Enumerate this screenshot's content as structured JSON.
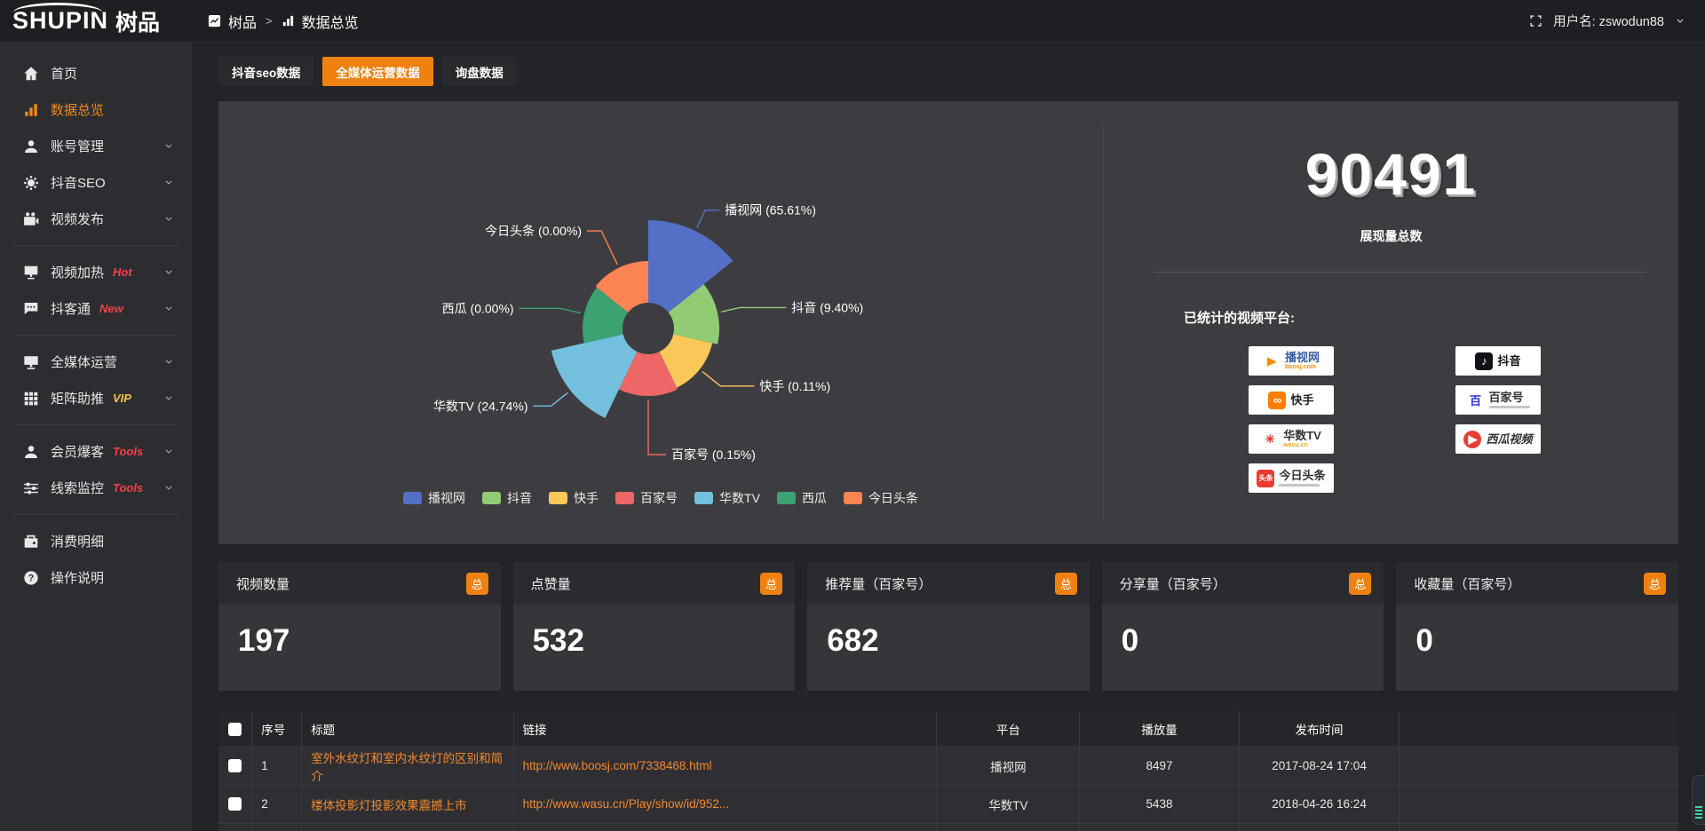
{
  "colors": {
    "accent_orange": "#EE8110",
    "link_orange": "#F0892F",
    "tag_red": "#F5404A",
    "tag_yellow": "#F6C344",
    "panel_bg": "#3D3D41",
    "sidebar_bg": "#2D2D31",
    "header_bg": "#1F1F23"
  },
  "header": {
    "logo_en": "SHUPIN",
    "logo_cn": "树品",
    "breadcrumb": {
      "root": "树品",
      "separator": ">",
      "current": "数据总览"
    },
    "username": "用户名: zswodun88"
  },
  "sidebar": {
    "groups": [
      {
        "items": [
          {
            "key": "home",
            "icon": "home",
            "label": "首页",
            "tag": "",
            "chevron": false,
            "active": false
          },
          {
            "key": "data-overview",
            "icon": "chart",
            "label": "数据总览",
            "tag": "",
            "chevron": false,
            "active": true
          },
          {
            "key": "account-management",
            "icon": "user",
            "label": "账号管理",
            "tag": "",
            "chevron": true,
            "active": false
          },
          {
            "key": "douyin-seo",
            "icon": "gear",
            "label": "抖音SEO",
            "tag": "",
            "chevron": true,
            "active": false
          },
          {
            "key": "video-publish",
            "icon": "video",
            "label": "视频发布",
            "tag": "",
            "chevron": true,
            "active": false
          }
        ]
      },
      {
        "items": [
          {
            "key": "video-heat",
            "icon": "board",
            "label": "视频加热",
            "tag": "Hot",
            "tag_color": "red",
            "chevron": true,
            "active": false
          },
          {
            "key": "douketong",
            "icon": "chat",
            "label": "抖客通",
            "tag": "New",
            "tag_color": "red",
            "chevron": true,
            "active": false
          }
        ]
      },
      {
        "items": [
          {
            "key": "omnimedia-operation",
            "icon": "monitor",
            "label": "全媒体运营",
            "tag": "",
            "chevron": true,
            "active": false
          },
          {
            "key": "matrix-boost",
            "icon": "grid",
            "label": "矩阵助推",
            "tag": "VIP",
            "tag_color": "yellow",
            "chevron": true,
            "active": false
          }
        ]
      },
      {
        "items": [
          {
            "key": "member-baoke",
            "icon": "user",
            "label": "会员爆客",
            "tag": "Tools",
            "tag_color": "red",
            "chevron": true,
            "active": false
          },
          {
            "key": "lead-monitor",
            "icon": "sliders",
            "label": "线索监控",
            "tag": "Tools",
            "tag_color": "red",
            "chevron": true,
            "active": false
          }
        ]
      },
      {
        "items": [
          {
            "key": "consumption-detail",
            "icon": "wallet",
            "label": "消费明细",
            "tag": "",
            "chevron": false,
            "active": false
          },
          {
            "key": "operation-guide",
            "icon": "question",
            "label": "操作说明",
            "tag": "",
            "chevron": false,
            "active": false
          }
        ]
      }
    ]
  },
  "tabs": [
    {
      "key": "douyin-seo-data",
      "label": "抖音seo数据",
      "active": false
    },
    {
      "key": "omnimedia-data",
      "label": "全媒体运营数据",
      "active": true
    },
    {
      "key": "inquiry-data",
      "label": "询盘数据",
      "active": false
    }
  ],
  "chart_data": {
    "type": "pie",
    "style": "nightingale-rose",
    "categories": [
      "播视网",
      "抖音",
      "快手",
      "百家号",
      "华数TV",
      "西瓜",
      "今日头条"
    ],
    "values": [
      65.61,
      9.4,
      0.11,
      0.15,
      24.74,
      0.0,
      0.0
    ],
    "unit": "%",
    "labels": [
      "播视网 (65.61%)",
      "抖音 (9.40%)",
      "快手 (0.11%)",
      "百家号 (0.15%)",
      "华数TV (24.74%)",
      "西瓜 (0.00%)",
      "今日头条 (0.00%)"
    ],
    "colors": [
      "#5470C6",
      "#91CC75",
      "#FAC858",
      "#EE6666",
      "#73C0DE",
      "#3BA272",
      "#FC8452"
    ],
    "rose_radii": [
      122,
      80,
      74,
      76,
      112,
      74,
      76
    ],
    "inner_radius": 29,
    "legend_position": "bottom"
  },
  "summary": {
    "total": "90491",
    "total_label": "展现量总数",
    "platforms_label": "已统计的视频平台:",
    "platform_columns": [
      [
        {
          "key": "boosj",
          "name": "播视网",
          "name_color": "#3B5BA5",
          "sub": "boosj.com",
          "sub_color": "#FF8A00",
          "icon_char": "▶",
          "icon_color": "#FF8A00",
          "icon_bg": ""
        },
        {
          "key": "kuaishou",
          "name": "快手",
          "name_color": "#222222",
          "icon_char": "∞",
          "icon_color": "#FFFFFF",
          "icon_bg": "#FF7E00"
        },
        {
          "key": "wasu",
          "name": "华数TV",
          "name_color": "#333333",
          "sub": "wasu.cn",
          "sub_color": "#F0A51E",
          "icon_char": "✳",
          "icon_color": "#E5352B",
          "icon_bg": ""
        },
        {
          "key": "toutiao",
          "name": "今日头条",
          "name_color": "#333333",
          "icon_char": "头条",
          "icon_color": "#FFFFFF",
          "icon_bg": "#ED3B2F",
          "icon_tiny": true,
          "tagline_bar": true
        }
      ],
      [
        {
          "key": "douyin",
          "name": "抖音",
          "name_color": "#111111",
          "icon_char": "♪",
          "icon_color": "#FFFFFF",
          "icon_bg": "#16101B"
        },
        {
          "key": "baijiahao",
          "name": "百家号",
          "name_color": "#333333",
          "icon_char": "百",
          "icon_color": "#2932E1",
          "icon_bg": "",
          "tagline_bar": true
        },
        {
          "key": "xigua",
          "name": "西瓜视频",
          "name_color": "#333333",
          "italic": true,
          "icon_char": "▶",
          "icon_color": "#FFFFFF",
          "icon_bg": "#E83F33",
          "icon_round": true
        }
      ]
    ]
  },
  "stat_cards": [
    {
      "title": "视频数量",
      "badge": "总",
      "value": "197"
    },
    {
      "title": "点赞量",
      "badge": "总",
      "value": "532"
    },
    {
      "title": "推荐量（百家号）",
      "badge": "总",
      "value": "682"
    },
    {
      "title": "分享量（百家号）",
      "badge": "总",
      "value": "0"
    },
    {
      "title": "收藏量（百家号）",
      "badge": "总",
      "value": "0"
    }
  ],
  "table": {
    "headers": [
      "序号",
      "标题",
      "链接",
      "平台",
      "播放量",
      "发布时间"
    ],
    "rows": [
      {
        "checked": false,
        "index": "1",
        "title": "室外水纹灯和室内水纹灯的区别和简介",
        "link": "http://www.boosj.com/7338468.html",
        "platform": "播视网",
        "plays": "8497",
        "published": "2017-08-24 17:04"
      },
      {
        "checked": false,
        "index": "2",
        "title": "楼体投影灯投影效果震撼上市",
        "link": "http://www.wasu.cn/Play/show/id/952...",
        "platform": "华数TV",
        "plays": "5438",
        "published": "2018-04-26 16:24"
      }
    ]
  }
}
